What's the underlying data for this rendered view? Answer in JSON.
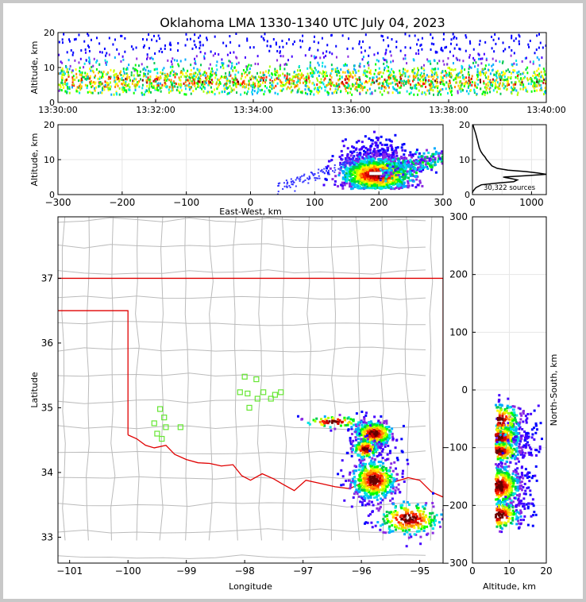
{
  "chart_data": [
    {
      "type": "scatter",
      "panel": "time-height",
      "title": "Oklahoma LMA 1330-1340 UTC July 04, 2023",
      "ylabel": "Altitude, km",
      "xlabel": "",
      "x_ticks": [
        "13:30:00",
        "13:32:00",
        "13:34:00",
        "13:36:00",
        "13:38:00",
        "13:40:00"
      ],
      "x_range_min": [
        0,
        10
      ],
      "ylim": [
        0,
        20
      ],
      "y_ticks": [
        0,
        10,
        20
      ],
      "density_peak_altitude_km": 6
    },
    {
      "type": "heatmap",
      "panel": "east-west-altitude",
      "xlabel": "East-West, km",
      "ylabel": "Altitude, km",
      "xlim": [
        -300,
        300
      ],
      "x_ticks": [
        -300,
        -200,
        -100,
        0,
        100,
        200,
        300
      ],
      "ylim": [
        0,
        20
      ],
      "y_ticks": [
        0,
        10,
        20
      ],
      "core": {
        "x_km": 195,
        "alt_km": 6
      }
    },
    {
      "type": "line",
      "panel": "altitude-histogram",
      "annotation": "30,322 sources",
      "xlim": [
        0,
        1250
      ],
      "x_ticks": [
        0,
        1000
      ],
      "ylim": [
        0,
        20
      ],
      "y_ticks": [
        0,
        10,
        20
      ],
      "profile": [
        [
          0,
          0.5
        ],
        [
          10,
          1
        ],
        [
          60,
          2
        ],
        [
          150,
          2.8
        ],
        [
          420,
          3.3
        ],
        [
          700,
          3.7
        ],
        [
          760,
          4.2
        ],
        [
          650,
          4.6
        ],
        [
          520,
          5.0
        ],
        [
          900,
          5.4
        ],
        [
          1250,
          5.8
        ],
        [
          1100,
          6.2
        ],
        [
          900,
          6.6
        ],
        [
          600,
          7.0
        ],
        [
          420,
          7.5
        ],
        [
          330,
          8.2
        ],
        [
          290,
          9
        ],
        [
          240,
          10
        ],
        [
          210,
          10.8
        ],
        [
          170,
          11.6
        ],
        [
          140,
          12.4
        ],
        [
          115,
          13.4
        ],
        [
          100,
          14.4
        ],
        [
          85,
          15.4
        ],
        [
          70,
          16.4
        ],
        [
          55,
          17.4
        ],
        [
          40,
          18.2
        ],
        [
          25,
          19
        ],
        [
          15,
          19.6
        ],
        [
          8,
          20
        ]
      ]
    },
    {
      "type": "scatter",
      "panel": "plan-view-map",
      "xlabel": "Longitude",
      "ylabel": "Latitude",
      "xlim": [
        -101.2,
        -94.6
      ],
      "x_ticks": [
        -101,
        -100,
        -99,
        -98,
        -97,
        -96,
        -95
      ],
      "ylim": [
        32.6,
        37.95
      ],
      "y_ticks": [
        33,
        34,
        35,
        36,
        37
      ],
      "stations": [
        [
          -98.0,
          35.48
        ],
        [
          -97.8,
          35.44
        ],
        [
          -98.08,
          35.24
        ],
        [
          -97.95,
          35.22
        ],
        [
          -97.78,
          35.14
        ],
        [
          -97.68,
          35.24
        ],
        [
          -97.55,
          35.14
        ],
        [
          -97.48,
          35.2
        ],
        [
          -97.38,
          35.24
        ],
        [
          -97.92,
          35.0
        ],
        [
          -99.45,
          34.98
        ],
        [
          -99.38,
          34.85
        ],
        [
          -99.55,
          34.76
        ],
        [
          -99.35,
          34.7
        ],
        [
          -99.1,
          34.7
        ],
        [
          -99.5,
          34.6
        ],
        [
          -99.42,
          34.52
        ]
      ],
      "clusters": [
        {
          "lon": -95.8,
          "lat": 34.62,
          "slon": 0.18,
          "slat": 0.1,
          "n": 420
        },
        {
          "lon": -95.95,
          "lat": 34.38,
          "slon": 0.12,
          "slat": 0.08,
          "n": 160
        },
        {
          "lon": -95.8,
          "lat": 33.9,
          "slon": 0.2,
          "slat": 0.16,
          "n": 520
        },
        {
          "lon": -95.2,
          "lat": 33.3,
          "slon": 0.3,
          "slat": 0.14,
          "n": 260
        },
        {
          "lon": -96.5,
          "lat": 34.8,
          "slon": 0.28,
          "slat": 0.05,
          "n": 70
        }
      ]
    },
    {
      "type": "heatmap",
      "panel": "altitude-north-south",
      "xlabel": "Altitude, km",
      "ylabel": "North-South, km",
      "xlim": [
        0,
        20
      ],
      "x_ticks": [
        0,
        10,
        20
      ],
      "ylim": [
        -300,
        300
      ],
      "y_ticks": [
        -300,
        -200,
        -100,
        0,
        100,
        200,
        300
      ]
    }
  ],
  "colors": {
    "border_red": "#e00000",
    "county_lines": "#bbbbbb",
    "station_green": "#66e633",
    "frame_background": "#c8c8c8"
  }
}
